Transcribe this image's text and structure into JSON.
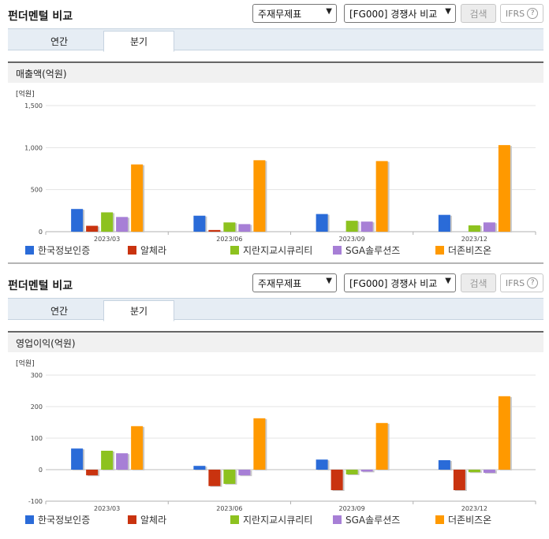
{
  "panels": [
    {
      "title": "펀더멘털 비교",
      "select_main": "주재무제표",
      "select_compare": "[FG000] 경쟁사 비교",
      "search_label": "검색",
      "ifrs_label": "IFRS",
      "help_icon_text": "?",
      "tabs": [
        {
          "label": "연간",
          "active": false
        },
        {
          "label": "분기",
          "active": true
        }
      ],
      "section_label": "매출액(억원)",
      "chart_data": {
        "type": "bar",
        "title": "매출액(억원)",
        "ylabel": "[억원]",
        "ylim": [
          0,
          1500
        ],
        "yticks": [
          0,
          500,
          1000,
          1500
        ],
        "ytick_labels": [
          "0",
          "500",
          "1,000",
          "1,500"
        ],
        "categories": [
          "2023/03",
          "2023/06",
          "2023/09",
          "2023/12"
        ],
        "series": [
          {
            "name": "한국정보인증",
            "color": "#2a6bd8",
            "values": [
              270,
              190,
              210,
              200
            ]
          },
          {
            "name": "알체라",
            "color": "#c9330f",
            "values": [
              70,
              20,
              0,
              0
            ]
          },
          {
            "name": "지란지교시큐리티",
            "color": "#8dc21f",
            "values": [
              230,
              110,
              130,
              75
            ]
          },
          {
            "name": "SGA솔루션즈",
            "color": "#a77fd6",
            "values": [
              175,
              90,
              120,
              110
            ]
          },
          {
            "name": "더존비즈온",
            "color": "#ff9900",
            "values": [
              800,
              850,
              840,
              1030
            ]
          }
        ]
      }
    },
    {
      "title": "펀더멘털 비교",
      "select_main": "주재무제표",
      "select_compare": "[FG000] 경쟁사 비교",
      "search_label": "검색",
      "ifrs_label": "IFRS",
      "help_icon_text": "?",
      "tabs": [
        {
          "label": "연간",
          "active": false
        },
        {
          "label": "분기",
          "active": true
        }
      ],
      "section_label": "영업이익(억원)",
      "chart_data": {
        "type": "bar",
        "title": "영업이익(억원)",
        "ylabel": "[억원]",
        "ylim": [
          -100,
          300
        ],
        "yticks": [
          -100,
          0,
          100,
          200,
          300
        ],
        "ytick_labels": [
          "-100",
          "0",
          "100",
          "200",
          "300"
        ],
        "categories": [
          "2023/03",
          "2023/06",
          "2023/09",
          "2023/12"
        ],
        "series": [
          {
            "name": "한국정보인증",
            "color": "#2a6bd8",
            "values": [
              67,
              12,
              32,
              30
            ]
          },
          {
            "name": "알체라",
            "color": "#c9330f",
            "values": [
              -18,
              -52,
              -65,
              -65
            ]
          },
          {
            "name": "지란지교시큐리티",
            "color": "#8dc21f",
            "values": [
              60,
              -45,
              -15,
              -8
            ]
          },
          {
            "name": "SGA솔루션즈",
            "color": "#a77fd6",
            "values": [
              52,
              -18,
              -6,
              -10
            ]
          },
          {
            "name": "더존비즈온",
            "color": "#ff9900",
            "values": [
              138,
              163,
              148,
              233
            ]
          }
        ]
      }
    }
  ]
}
